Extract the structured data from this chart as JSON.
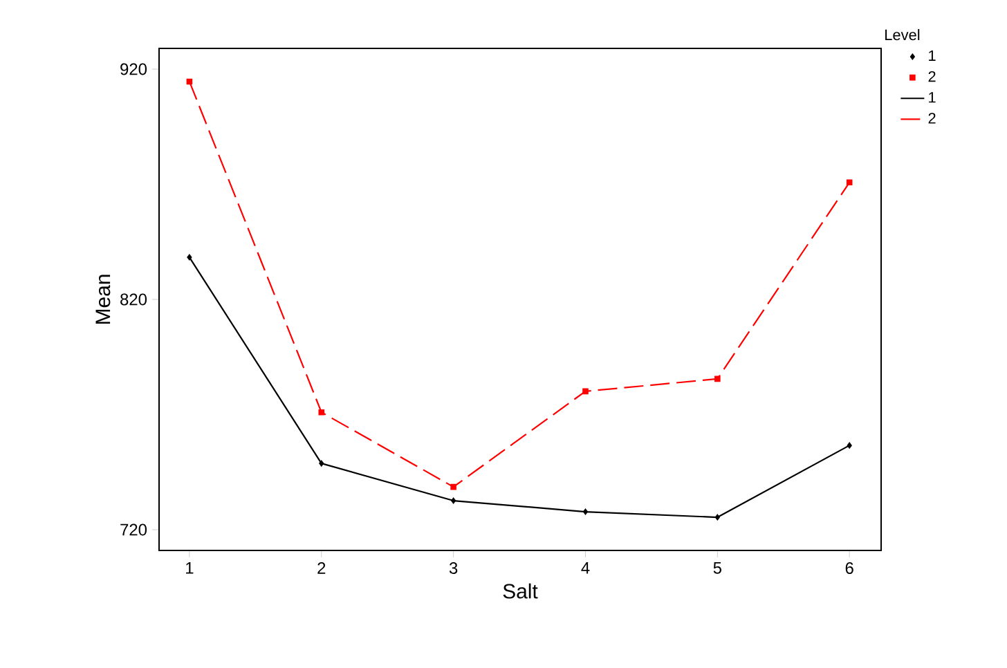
{
  "chart_data": {
    "type": "line",
    "xlabel": "Salt",
    "ylabel": "Mean",
    "legend_title": "Level",
    "x": [
      1,
      2,
      3,
      4,
      5,
      6
    ],
    "series": [
      {
        "name": "1",
        "type": "scatter",
        "marker": "diamond",
        "color": "#000000",
        "values": [
          838.3,
          748.8,
          732.6,
          727.8,
          725.4,
          756.6
        ]
      },
      {
        "name": "2",
        "type": "scatter",
        "marker": "square",
        "color": "#ff0000",
        "values": [
          914.6,
          771.0,
          738.6,
          780.1,
          785.5,
          870.8
        ]
      },
      {
        "name": "1",
        "marker": "none",
        "line_style": "solid",
        "color": "#000000",
        "values": [
          838.3,
          748.8,
          732.6,
          727.8,
          725.4,
          756.6
        ]
      },
      {
        "name": "2",
        "marker": "none",
        "line_style": "dashed",
        "color": "#ff0000",
        "values": [
          914.6,
          771.0,
          738.6,
          780.1,
          785.5,
          870.8
        ]
      }
    ],
    "xlim": [
      0.77,
      6.24
    ],
    "ylim": [
      711,
      929
    ],
    "xticks": [
      1,
      2,
      3,
      4,
      5,
      6
    ],
    "yticks": [
      720,
      820,
      920
    ],
    "grid": false,
    "legend": "top right"
  }
}
